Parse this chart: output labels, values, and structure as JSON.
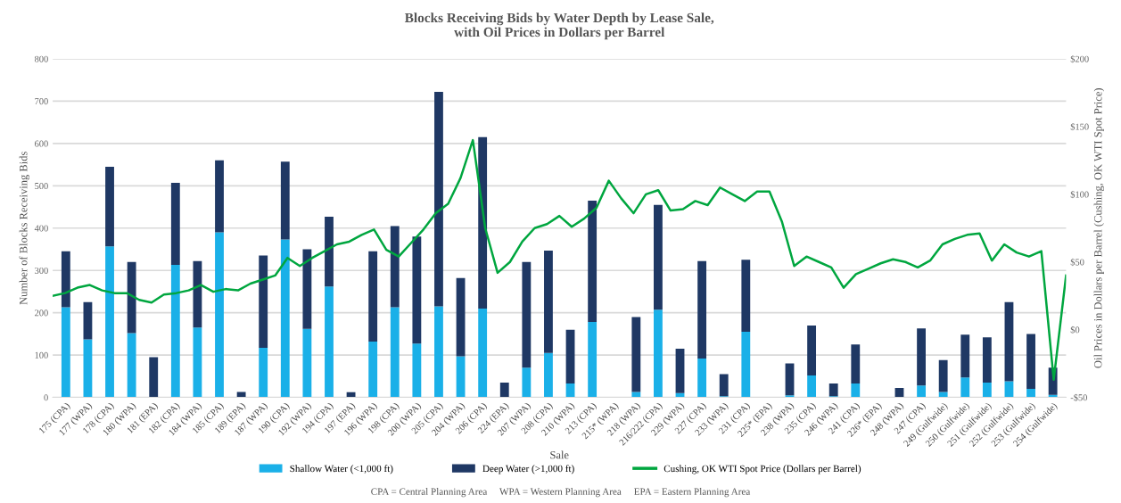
{
  "chart_data": [
    {
      "type": "bar",
      "stacked": true,
      "title": "Blocks Receiving Bids by Water Depth by Lease Sale,\nwith Oil Prices in Dollars per Barrel",
      "xlabel": "Sale",
      "ylabel": "Number of Blocks Receiving Bids",
      "categories": [
        "175 (CPA)",
        "177 (WPA)",
        "178 (CPA)",
        "180 (WPA)",
        "181 (EPA)",
        "182 (CPA)",
        "184 (WPA)",
        "185 (CPA)",
        "189 (EPA)",
        "187 (WPA)",
        "190 (CPA)",
        "192 (WPA)",
        "194 (CPA)",
        "197 (EPA)",
        "196 (WPA)",
        "198 (CPA)",
        "200 (WPA)",
        "205 (CPA)",
        "204 (WPA)",
        "206 (CPA)",
        "224 (EPA)",
        "207 (WPA)",
        "208 (CPA)",
        "210 (WPA)",
        "213 (CPA)",
        "215* (WPA)",
        "218 (WPA)",
        "216/222 (CPA)",
        "229 (WPA)",
        "227 (CPA)",
        "233 (WPA)",
        "231 (CPA)",
        "225* (EPA)",
        "238 (WPA)",
        "235 (CPA)",
        "246 (WPA)",
        "241 (CPA)",
        "226* (EPA)",
        "248 (WPA)",
        "247 (CPA)",
        "249 (Gulfwide)",
        "250 (Gulfwide)",
        "251 (Gulfwide)",
        "252 (Gulfwide)",
        "253 (Gulfwide)",
        "254 (Gulfwide)"
      ],
      "series": [
        {
          "name": "Shallow Water (<1,000 ft)",
          "color": "#1ab0e8",
          "values": [
            213,
            137,
            357,
            152,
            0,
            313,
            165,
            390,
            0,
            117,
            373,
            162,
            262,
            0,
            132,
            213,
            127,
            215,
            97,
            210,
            0,
            70,
            105,
            33,
            178,
            0,
            13,
            207,
            10,
            92,
            3,
            155,
            0,
            5,
            52,
            3,
            33,
            0,
            0,
            28,
            13,
            47,
            35,
            38,
            20,
            6
          ]
        },
        {
          "name": "Deep Water (>1,000 ft)",
          "color": "#1f3864",
          "values": [
            132,
            88,
            188,
            168,
            95,
            194,
            157,
            170,
            13,
            218,
            184,
            188,
            165,
            12,
            213,
            192,
            253,
            507,
            185,
            405,
            35,
            250,
            242,
            127,
            287,
            0,
            177,
            248,
            105,
            230,
            52,
            170,
            0,
            75,
            118,
            30,
            92,
            0,
            22,
            135,
            75,
            101,
            107,
            187,
            130,
            64
          ]
        }
      ],
      "ylim": [
        0,
        800
      ],
      "yticks": [
        0,
        100,
        200,
        300,
        400,
        500,
        600,
        700,
        800
      ],
      "grid": "y",
      "legend": "bottom",
      "annotations": [
        "CPA = Central Planning Area     WPA = Western Planning Area     EPA = Eastern Planning Area"
      ]
    },
    {
      "type": "line",
      "ylabel": "Oil Prices in Dollars per Barrel (Cushing, OK WTI Spot Price)",
      "tick_labels": "y",
      "legend": "bottom",
      "series": [
        {
          "name": "Cushing, OK WTI Spot Price (Dollars per Barrel)",
          "color": "#00a63f",
          "values": [
            25,
            27,
            31,
            33,
            29,
            27,
            27,
            22,
            20,
            26,
            27,
            29,
            33,
            28,
            30,
            29,
            34,
            37,
            40,
            53,
            47,
            53,
            58,
            63,
            65,
            70,
            74,
            59,
            54,
            64,
            74,
            86,
            93,
            112,
            140,
            75,
            42,
            50,
            65,
            75,
            78,
            84,
            76,
            82,
            90,
            110,
            97,
            86,
            100,
            103,
            88,
            89,
            95,
            92,
            105,
            100,
            95,
            102,
            102,
            80,
            47,
            54,
            50,
            46,
            31,
            41,
            45,
            49,
            52,
            50,
            46,
            51,
            63,
            67,
            70,
            71,
            51,
            63,
            57,
            54,
            58,
            -37,
            40
          ]
        }
      ],
      "categories": [
        null,
        null,
        null,
        null,
        null,
        null,
        null,
        null,
        null,
        null,
        null,
        null,
        null,
        null,
        null,
        null,
        null,
        null,
        null,
        null,
        null,
        null,
        null,
        null,
        null,
        null,
        null,
        null,
        null,
        null,
        null,
        null,
        null,
        null,
        null,
        null,
        null,
        null,
        null,
        null,
        null,
        null,
        null,
        null,
        null,
        null,
        null,
        null,
        null,
        null,
        null,
        null,
        null,
        null,
        null,
        null,
        null,
        null,
        null,
        null,
        null,
        null,
        null,
        null,
        null,
        null,
        null,
        null,
        null,
        null,
        null,
        null,
        null,
        null,
        null,
        null,
        null,
        null,
        null,
        null,
        null,
        null,
        null
      ],
      "ylim": [
        -50,
        200
      ],
      "yticks": [
        {
          "value": -50,
          "label": "-$50"
        },
        {
          "value": 0,
          "label": "$0"
        },
        {
          "value": 50,
          "label": "$50"
        },
        {
          "value": 100,
          "label": "$100"
        },
        {
          "value": 150,
          "label": "$150"
        },
        {
          "value": 200,
          "label": "$200"
        }
      ]
    }
  ]
}
